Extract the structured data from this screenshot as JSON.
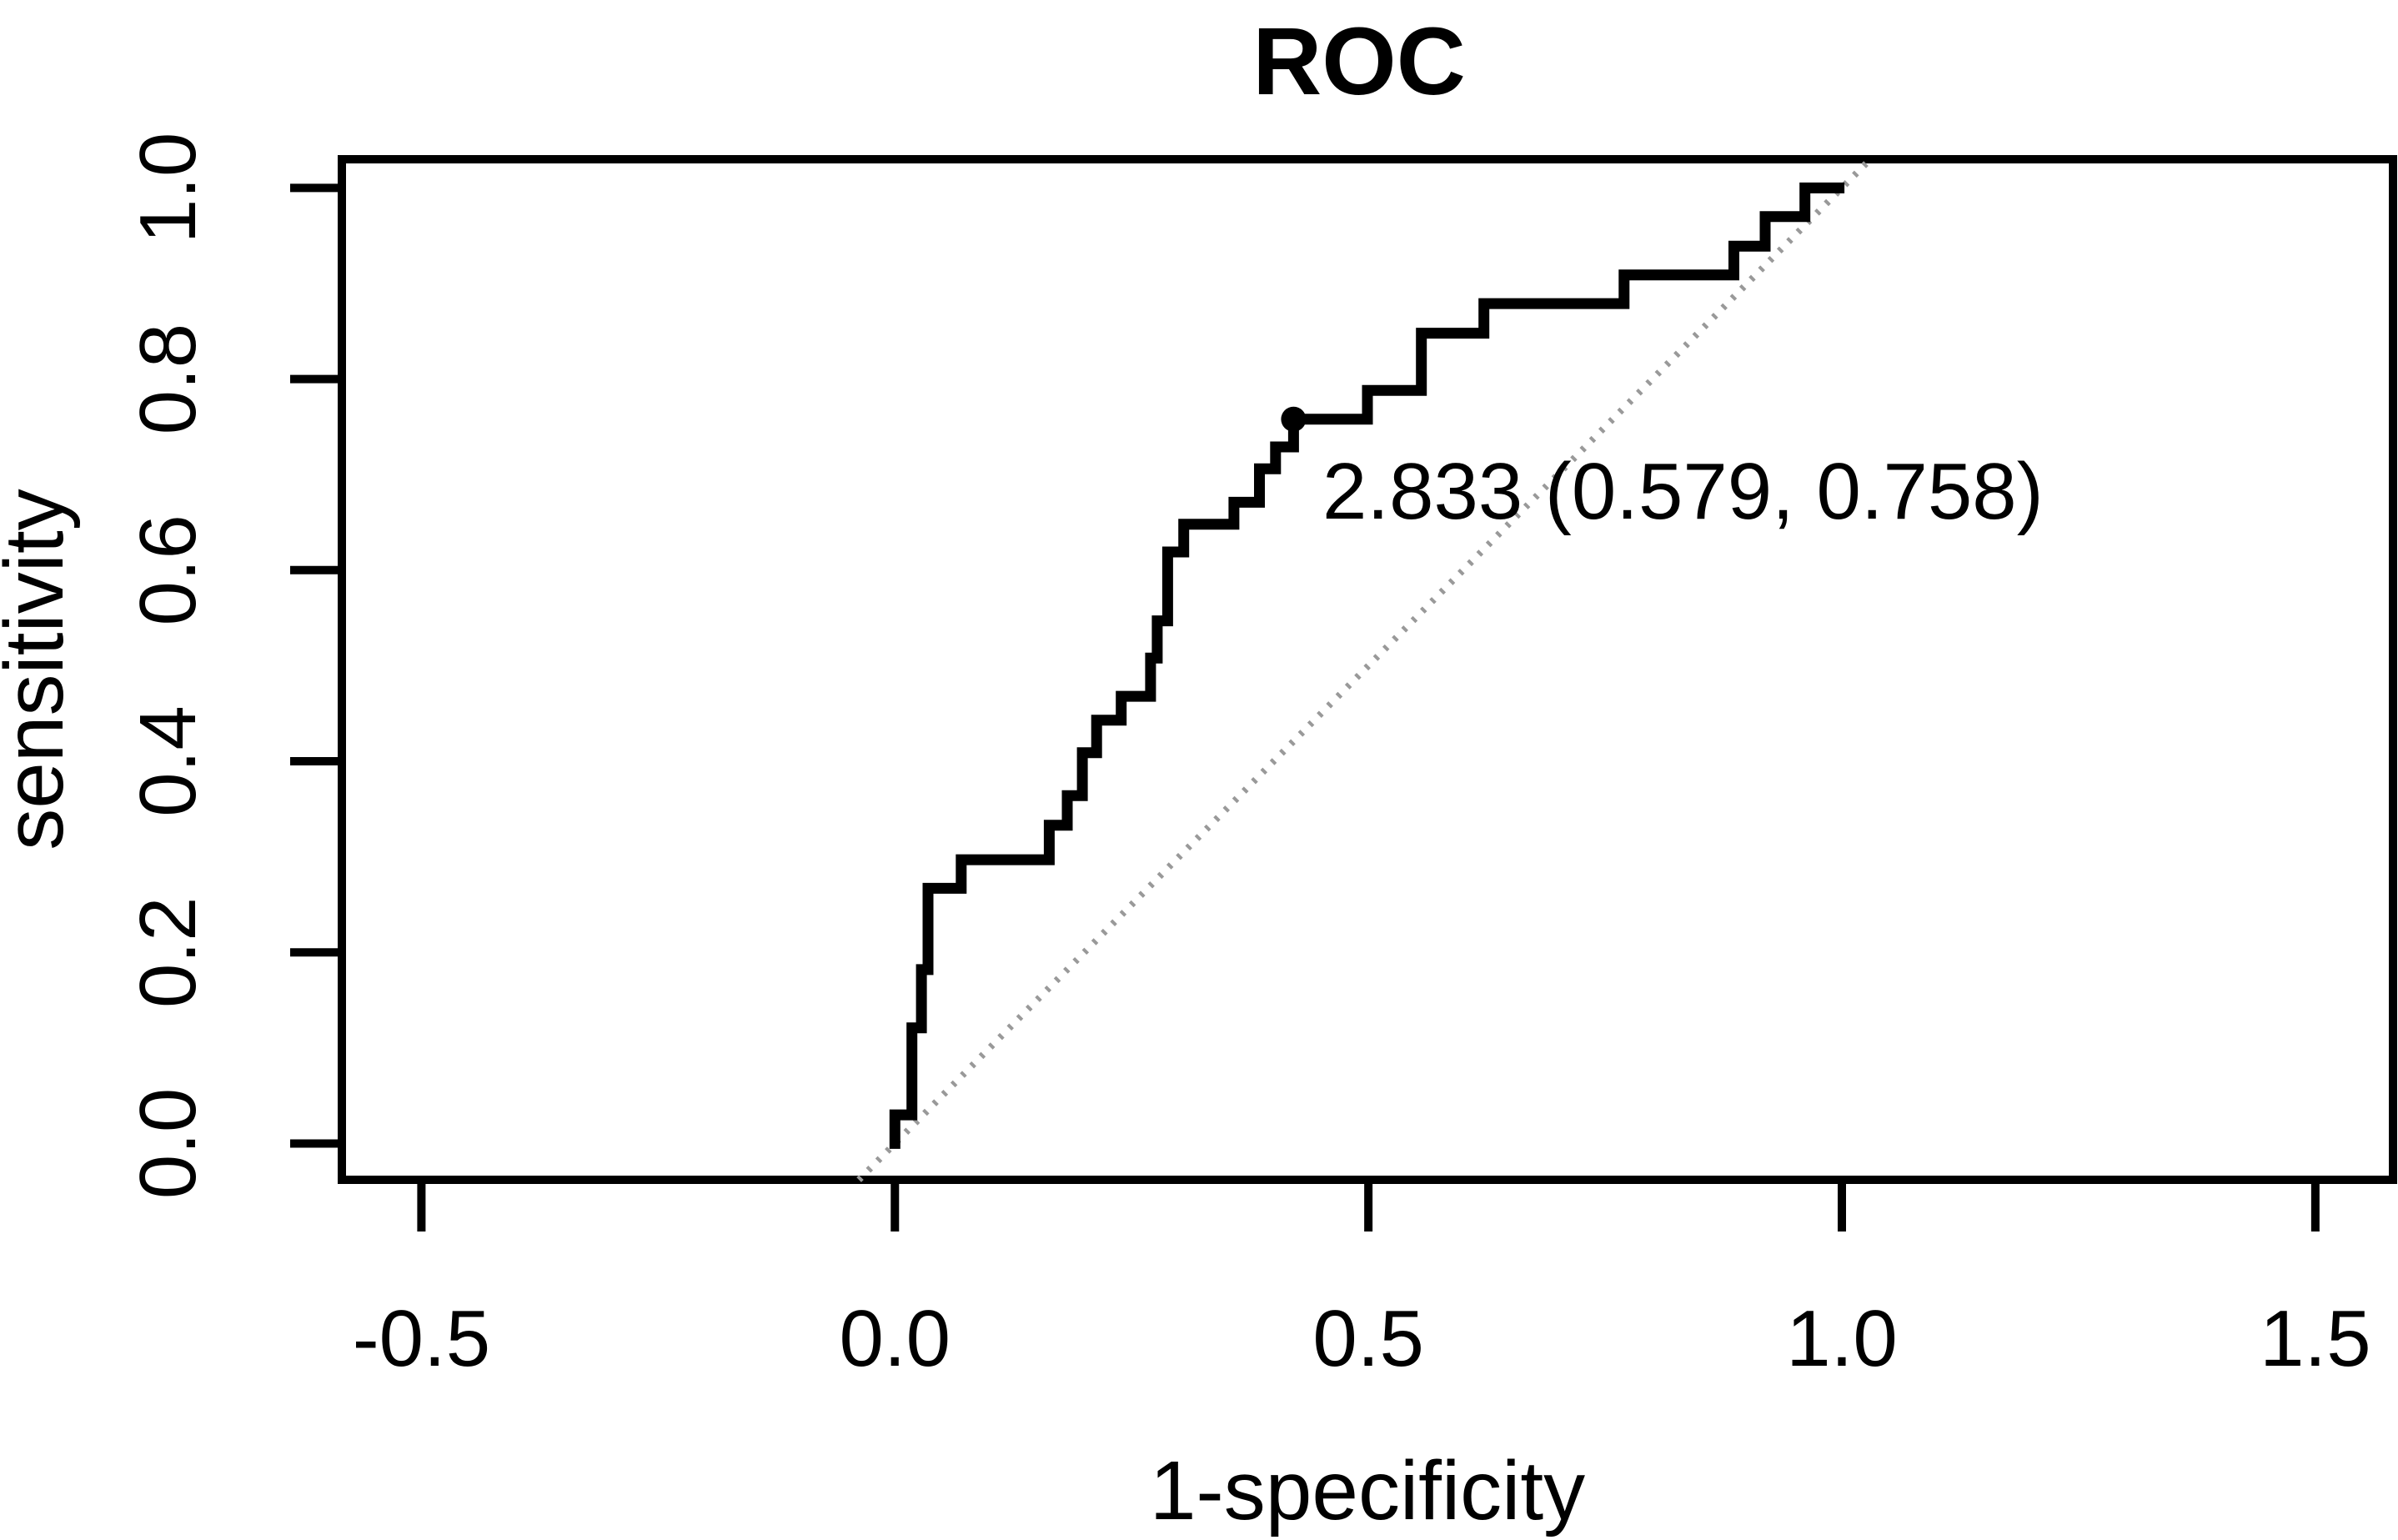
{
  "chart_data": {
    "type": "line",
    "subtype": "roc-step-curve",
    "title": "ROC",
    "xlabel": "1-specificity",
    "ylabel": "sensitivity",
    "grid": false,
    "legend_position": "none",
    "xlim": [
      -0.584,
      1.582
    ],
    "ylim": [
      -0.038,
      1.03
    ],
    "x_ticks": {
      "values": [
        -0.5,
        0.0,
        0.5,
        1.0,
        1.5
      ],
      "labels": [
        "-0.5",
        "0.0",
        "0.5",
        "1.0",
        "1.5"
      ]
    },
    "y_ticks": {
      "values": [
        0.0,
        0.2,
        0.4,
        0.6,
        0.8,
        1.0
      ],
      "labels": [
        "0.0",
        "0.2",
        "0.4",
        "0.6",
        "0.8",
        "1.0"
      ]
    },
    "series": [
      {
        "name": "ROC curve",
        "x": [
          0.0,
          0.0,
          0.018,
          0.018,
          0.028,
          0.028,
          0.035,
          0.035,
          0.07,
          0.07,
          0.163,
          0.163,
          0.182,
          0.182,
          0.198,
          0.198,
          0.213,
          0.213,
          0.239,
          0.239,
          0.27,
          0.27,
          0.277,
          0.277,
          0.288,
          0.288,
          0.305,
          0.305,
          0.358,
          0.358,
          0.385,
          0.385,
          0.402,
          0.402,
          0.421,
          0.421,
          0.499,
          0.499,
          0.556,
          0.556,
          0.622,
          0.622,
          0.77,
          0.77,
          0.886,
          0.886,
          0.919,
          0.919,
          0.961,
          0.961,
          0.997
        ],
        "y": [
          0.0,
          0.03,
          0.03,
          0.121,
          0.121,
          0.182,
          0.182,
          0.267,
          0.267,
          0.297,
          0.297,
          0.333,
          0.333,
          0.364,
          0.364,
          0.409,
          0.409,
          0.443,
          0.443,
          0.468,
          0.468,
          0.508,
          0.508,
          0.547,
          0.547,
          0.619,
          0.619,
          0.648,
          0.648,
          0.671,
          0.671,
          0.706,
          0.706,
          0.729,
          0.729,
          0.758,
          0.758,
          0.788,
          0.788,
          0.848,
          0.848,
          0.879,
          0.879,
          0.909,
          0.909,
          0.939,
          0.939,
          0.97,
          0.97,
          1.0,
          1.0
        ]
      }
    ],
    "reference_line": {
      "name": "chance diagonal",
      "x": [
        -0.038,
        1.03
      ],
      "y": [
        -0.038,
        1.03
      ],
      "style": "dotted"
    },
    "threshold_point": {
      "threshold": "2.833",
      "specificity": "0.579",
      "sensitivity": "0.758",
      "x": 0.421,
      "y": 0.758,
      "label": "2.833 (0.579, 0.758)"
    },
    "colors": {
      "curve": "#000000",
      "reference": "#999999",
      "text": "#000000",
      "background": "#ffffff",
      "box": "#000000"
    }
  }
}
